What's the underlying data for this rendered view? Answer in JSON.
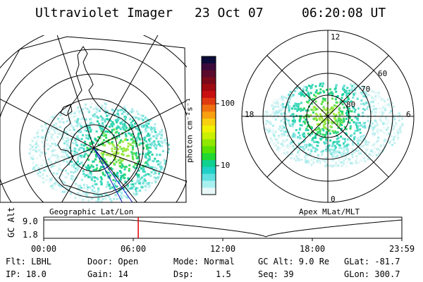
{
  "header": {
    "instrument": "Ultraviolet Imager",
    "date": "23 Oct 07",
    "time": "06:20:08 UT"
  },
  "geo_panel": {
    "label": "Geographic Lat/Lon"
  },
  "apex_panel": {
    "label": "Apex MLat/MLT",
    "mlt_labels": [
      "12",
      "18",
      "6",
      "0"
    ],
    "lat_labels": [
      "60",
      "70",
      "80"
    ]
  },
  "colorbar": {
    "unit_label": "photon cm⁻²s⁻¹",
    "ticks": [
      "100",
      "10"
    ],
    "colors": [
      "#0b0b3a",
      "#3b0a3a",
      "#5a0a2a",
      "#7a0a1a",
      "#a00a10",
      "#c81010",
      "#e03a10",
      "#f07010",
      "#f8a010",
      "#f8d010",
      "#f0f000",
      "#c8f000",
      "#90e800",
      "#58e000",
      "#20d830",
      "#10d090",
      "#20d0c8",
      "#60e0e0",
      "#a8f0f0",
      "#e8f8f8"
    ]
  },
  "timeline": {
    "y_label": "GC Alt",
    "y_ticks": [
      "9.0",
      "1.8"
    ],
    "x_ticks": [
      "00:00",
      "06:00",
      "12:00",
      "18:00",
      "23:59"
    ],
    "current_time_fraction": 0.264
  },
  "footer": {
    "flt": "Flt: LBHL",
    "door": "Door: Open",
    "mode": "Mode: Normal",
    "gc_alt": "GC Alt: 9.0 Re",
    "glat": "GLat: -81.7",
    "ip": "IP: 18.0",
    "gain": "Gain: 14",
    "dsp_label": "Dsp:",
    "dsp_value": "1.5",
    "seq": "Seq: 39",
    "glon": "GLon: 300.7"
  }
}
